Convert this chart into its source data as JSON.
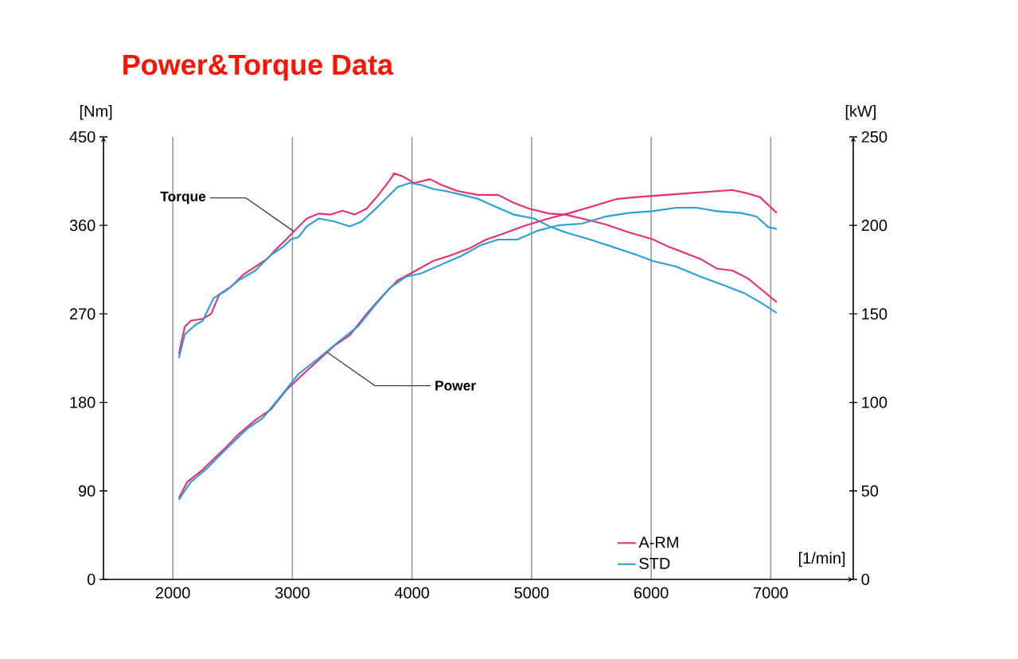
{
  "chart_data": {
    "type": "line",
    "title": "Power&Torque Data",
    "xlabel": "[1/min]",
    "ylabel": "[Nm]",
    "y2label": "[kW]",
    "xlim": [
      1420,
      7690
    ],
    "ylim": [
      0,
      450
    ],
    "y2lim": [
      0,
      250
    ],
    "xticks": [
      2000,
      3000,
      4000,
      5000,
      6000,
      7000
    ],
    "yticks": [
      0,
      90,
      180,
      270,
      360,
      450
    ],
    "y2ticks": [
      0,
      50,
      100,
      150,
      200,
      250
    ],
    "grid": "x",
    "legend": "bottom right",
    "annotations": [
      {
        "text": "Torque",
        "x": 3010,
        "y": 354
      },
      {
        "text": "Power",
        "x": 3290,
        "y": 231
      }
    ],
    "series": [
      {
        "name": "A-RM",
        "color": "#e8306e",
        "x": [
          2050,
          2100,
          2150,
          2250,
          2320,
          2390,
          2490,
          2590,
          2690,
          2790,
          2850,
          2950,
          3030,
          3120,
          3220,
          3320,
          3420,
          3520,
          3620,
          3720,
          3820,
          3850,
          3920,
          4020,
          4150,
          4250,
          4380,
          4550,
          4720,
          4850,
          4980,
          5150,
          5280,
          5420,
          5620,
          5810,
          6010,
          6150,
          6280,
          6410,
          6550,
          6680,
          6810,
          6910,
          7050
        ],
        "values": [
          229,
          257,
          263,
          265,
          270,
          290,
          298,
          310,
          318,
          326,
          334,
          346,
          356,
          367,
          372,
          371,
          375,
          371,
          377,
          391,
          407,
          413,
          410,
          403,
          407,
          401,
          395,
          391,
          391,
          383,
          377,
          372,
          371,
          367,
          361,
          353,
          346,
          338,
          332,
          326,
          316,
          314,
          306,
          296,
          282
        ]
      },
      {
        "name": "STD",
        "color": "#2a9fd8",
        "x": [
          2050,
          2100,
          2190,
          2250,
          2340,
          2450,
          2550,
          2690,
          2820,
          2920,
          2990,
          3050,
          3120,
          3220,
          3350,
          3480,
          3580,
          3680,
          3780,
          3880,
          3980,
          4080,
          4180,
          4280,
          4420,
          4550,
          4680,
          4850,
          5020,
          5150,
          5280,
          5480,
          5680,
          5880,
          6010,
          6210,
          6410,
          6610,
          6780,
          6910,
          7050
        ],
        "values": [
          225,
          249,
          259,
          263,
          286,
          294,
          304,
          314,
          330,
          338,
          346,
          348,
          359,
          367,
          364,
          359,
          364,
          375,
          387,
          399,
          403,
          401,
          397,
          395,
          391,
          387,
          380,
          371,
          367,
          359,
          353,
          346,
          338,
          330,
          324,
          318,
          308,
          299,
          291,
          282,
          271
        ]
      },
      {
        "color": "#e8306e",
        "axis": "y2",
        "x": [
          2050,
          2120,
          2250,
          2420,
          2550,
          2690,
          2820,
          2950,
          3090,
          3220,
          3350,
          3480,
          3620,
          3750,
          3880,
          4020,
          4180,
          4320,
          4480,
          4620,
          4750,
          4950,
          5150,
          5320,
          5520,
          5720,
          5880,
          6080,
          6280,
          6480,
          6680,
          6810,
          6910,
          7050
        ],
        "values": [
          46,
          55,
          62,
          73,
          82,
          90,
          96,
          107,
          116,
          124,
          132,
          138,
          150,
          160,
          169,
          174,
          180,
          183,
          187,
          192,
          195,
          200,
          204,
          207,
          211,
          215,
          216,
          217,
          218,
          219,
          220,
          218,
          216,
          207
        ]
      },
      {
        "color": "#2a9fd8",
        "axis": "y2",
        "x": [
          2050,
          2150,
          2290,
          2450,
          2620,
          2750,
          2920,
          3050,
          3220,
          3380,
          3550,
          3680,
          3820,
          3950,
          4080,
          4250,
          4420,
          4580,
          4720,
          4880,
          5050,
          5220,
          5420,
          5620,
          5810,
          6010,
          6210,
          6380,
          6550,
          6750,
          6880,
          6980,
          7050
        ],
        "values": [
          45,
          55,
          63,
          74,
          85,
          91,
          105,
          116,
          125,
          134,
          143,
          154,
          165,
          171,
          173,
          178,
          183,
          189,
          192,
          192,
          197,
          200,
          201,
          205,
          207,
          208,
          210,
          210,
          208,
          207,
          205,
          199,
          198
        ]
      }
    ]
  }
}
